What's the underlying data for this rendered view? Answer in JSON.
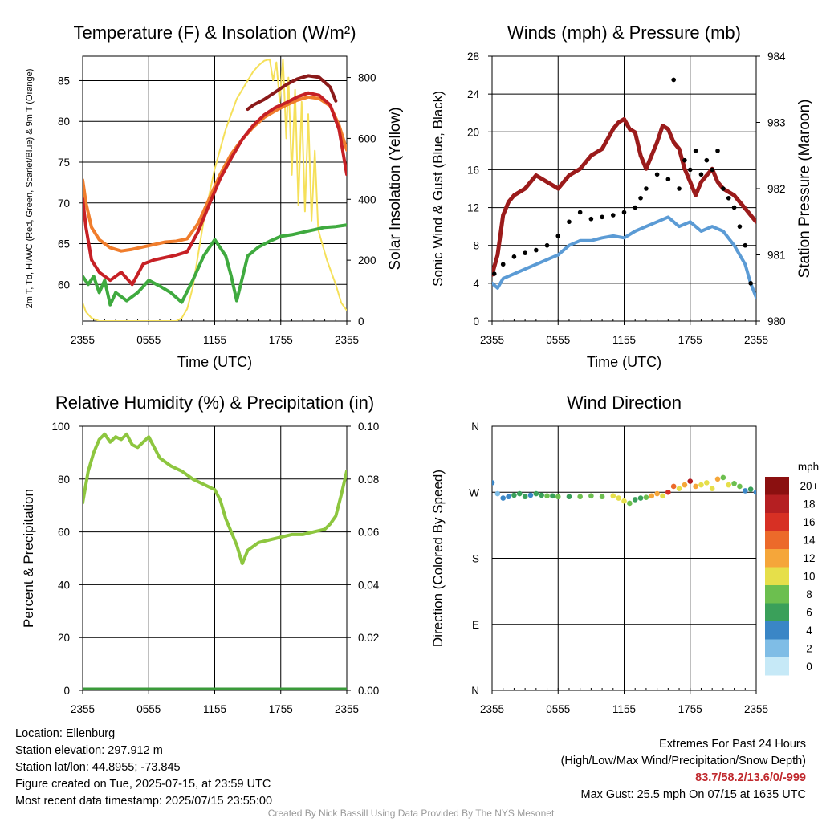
{
  "colors": {
    "temp": "#c62025",
    "dewpoint": "#3faa3f",
    "heat_index": "#8b1a1a",
    "t9m": "#f07d2c",
    "insolation": "#f5e05a",
    "wind": "#5b9bd5",
    "gust": "#000000",
    "pressure": "#9b1b1b",
    "rh": "#8dc63f",
    "precip": "#3a9a3a"
  },
  "chart_data": [
    {
      "id": "temperature",
      "type": "line",
      "title": "Temperature (F) & Insolation (W/m²)",
      "xlabel": "Time (UTC)",
      "ylabel": "2m T, Td, HI/WC (Red, Green, Scarlet/Blue) & 9m T (Orange)",
      "y2label": "Solar Insolation (Yellow)",
      "x_ticks": [
        "2355",
        "0555",
        "1155",
        "1755",
        "2355"
      ],
      "xlim_hours": [
        0,
        24
      ],
      "ylim": [
        55.5,
        88
      ],
      "yticks": [
        60,
        65,
        70,
        75,
        80,
        85
      ],
      "y2lim": [
        0,
        870
      ],
      "y2ticks": [
        0,
        200,
        400,
        600,
        800
      ],
      "series": [
        {
          "key": "t9m",
          "axis": "y",
          "x": [
            0,
            0.3,
            0.8,
            1.5,
            2.5,
            3.5,
            4.5,
            5.5,
            6.5,
            7.5,
            8.5,
            9.5,
            10.5,
            11.5,
            12.5,
            13.5,
            14.5,
            15.5,
            16.5,
            17.5,
            18.5,
            19.5,
            20.5,
            21.5,
            22.5,
            23.3,
            24
          ],
          "y": [
            72.8,
            70,
            67,
            65.5,
            64.5,
            64.1,
            64.3,
            64.6,
            64.9,
            65.2,
            65.3,
            65.6,
            67.5,
            70.5,
            73.5,
            76,
            77.8,
            79.3,
            80.5,
            81.3,
            82,
            82.6,
            83,
            82.8,
            81.9,
            79.5,
            76.5
          ]
        },
        {
          "key": "temp",
          "axis": "y",
          "x": [
            0,
            0.3,
            0.8,
            1.5,
            2.5,
            3.5,
            4.5,
            5.5,
            6.5,
            7.5,
            8.5,
            9.5,
            10.5,
            11.5,
            12.5,
            13.5,
            14.5,
            15.5,
            16.5,
            17.5,
            18.5,
            19.5,
            20.5,
            21.5,
            22.5,
            23.3,
            24
          ],
          "y": [
            70.5,
            67,
            63,
            61.5,
            60.5,
            61.5,
            60,
            62.5,
            63,
            63.3,
            63.6,
            64,
            66.5,
            69.8,
            73,
            75.5,
            77.8,
            79.5,
            80.8,
            81.7,
            82.3,
            83,
            83.5,
            83.2,
            82,
            79,
            73.5
          ]
        },
        {
          "key": "heat_index",
          "axis": "y",
          "x": [
            15,
            15.5,
            16.5,
            17.5,
            18.5,
            19.5,
            20.5,
            21.5,
            22.5,
            23
          ],
          "y": [
            81.5,
            82,
            82.7,
            83.6,
            84.5,
            85.2,
            85.6,
            85.4,
            84.2,
            82.5
          ]
        },
        {
          "key": "dewpoint",
          "axis": "y",
          "x": [
            0,
            0.5,
            1,
            1.5,
            2,
            2.5,
            3,
            3.5,
            4,
            5,
            6,
            7,
            8,
            9,
            10,
            11,
            12,
            13,
            13.5,
            14,
            15,
            16,
            17,
            18,
            19,
            20,
            21,
            22,
            23,
            24
          ],
          "y": [
            61,
            60,
            61,
            59,
            60.5,
            57.5,
            59,
            58.5,
            58,
            59,
            60.5,
            59.8,
            59,
            57.8,
            60.5,
            63.5,
            65.5,
            63.5,
            61,
            58,
            63.5,
            64.6,
            65.3,
            65.9,
            66.1,
            66.4,
            66.7,
            67,
            67.1,
            67.3
          ]
        },
        {
          "key": "insolation",
          "axis": "y2",
          "x": [
            0,
            0.3,
            0.8,
            1.5,
            3,
            5,
            7,
            8.5,
            9,
            9.5,
            10,
            10.5,
            11,
            12,
            13,
            14,
            15,
            15.5,
            16,
            16.5,
            17,
            17.3,
            17.6,
            17.9,
            18.2,
            18.5,
            18.7,
            19,
            19.3,
            19.6,
            19.9,
            20.2,
            20.5,
            20.8,
            21.1,
            21.4,
            21.8,
            22.2,
            22.6,
            23,
            23.5,
            24
          ],
          "y": [
            60,
            30,
            10,
            0,
            0,
            0,
            0,
            0,
            10,
            40,
            110,
            220,
            330,
            500,
            630,
            730,
            790,
            820,
            840,
            855,
            860,
            790,
            850,
            720,
            860,
            600,
            800,
            480,
            760,
            380,
            720,
            360,
            680,
            330,
            560,
            300,
            250,
            200,
            160,
            120,
            60,
            35
          ]
        }
      ]
    },
    {
      "id": "winds",
      "type": "line",
      "title": "Winds (mph) & Pressure (mb)",
      "xlabel": "Time (UTC)",
      "ylabel": "Sonic Wind & Gust (Blue, Black)",
      "y2label": "Station Pressure (Maroon)",
      "x_ticks": [
        "2355",
        "0555",
        "1155",
        "1755",
        "2355"
      ],
      "xlim_hours": [
        0,
        24
      ],
      "ylim": [
        0,
        28
      ],
      "yticks": [
        0,
        4,
        8,
        12,
        16,
        20,
        24,
        28
      ],
      "y2lim": [
        980,
        984
      ],
      "y2ticks": [
        980,
        981,
        982,
        983,
        984
      ],
      "series": [
        {
          "key": "wind",
          "axis": "y",
          "x": [
            0,
            0.5,
            1,
            2,
            3,
            4,
            5,
            6,
            7,
            8,
            9,
            10,
            11,
            12,
            13,
            14,
            15,
            16,
            17,
            18,
            19,
            20,
            21,
            22,
            23,
            23.5,
            24
          ],
          "y": [
            4,
            3.5,
            4.5,
            5,
            5.5,
            6,
            6.5,
            7,
            8,
            8.5,
            8.5,
            8.8,
            9,
            8.8,
            9.5,
            10,
            10.5,
            11,
            10,
            10.5,
            9.5,
            10,
            9.5,
            8,
            6,
            4,
            2.5
          ]
        },
        {
          "key": "gust",
          "axis": "y",
          "style": "dots",
          "x": [
            0.2,
            1,
            2,
            3,
            4,
            5,
            6,
            7,
            8,
            9,
            10,
            11,
            12,
            13,
            13.5,
            14,
            15,
            16,
            16.5,
            17,
            17.5,
            18,
            18.5,
            19,
            19.5,
            20,
            20.5,
            21,
            21.5,
            22,
            22.5,
            23,
            23.5
          ],
          "y": [
            5,
            6,
            6.8,
            7.2,
            7.5,
            8,
            9,
            10.5,
            11.5,
            10.8,
            11,
            11.2,
            11.5,
            12,
            13,
            14,
            15.5,
            15,
            25.5,
            14,
            17,
            16,
            18,
            15.5,
            17,
            16,
            18,
            14,
            13,
            12,
            10,
            8,
            4
          ]
        },
        {
          "key": "pressure",
          "axis": "y2",
          "x": [
            0,
            0.5,
            1,
            1.5,
            2,
            3,
            4,
            5,
            6,
            7,
            8,
            9,
            10,
            11,
            11.5,
            12,
            12.5,
            13,
            13.5,
            14,
            15,
            15.5,
            16,
            16.5,
            17,
            17.5,
            18,
            18.5,
            19,
            19.5,
            20,
            20.5,
            21,
            21.5,
            22,
            22.5,
            23,
            23.5,
            24
          ],
          "y": [
            980.7,
            981,
            981.6,
            981.8,
            981.9,
            982,
            982.2,
            982.1,
            982,
            982.2,
            982.3,
            982.5,
            982.6,
            982.9,
            983,
            983.05,
            982.9,
            982.85,
            982.5,
            982.3,
            982.7,
            982.95,
            982.9,
            982.7,
            982.6,
            982.3,
            982.1,
            981.9,
            982.1,
            982.2,
            982.3,
            982.1,
            982,
            981.95,
            981.9,
            981.8,
            981.7,
            981.6,
            981.5
          ]
        }
      ]
    },
    {
      "id": "humidity",
      "type": "line",
      "title": "Relative Humidity (%) & Precipitation (in)",
      "ylabel": "Percent & Precipitation",
      "x_ticks": [
        "2355",
        "0555",
        "1155",
        "1755",
        "2355"
      ],
      "xlim_hours": [
        0,
        24
      ],
      "ylim": [
        0,
        100
      ],
      "yticks": [
        0,
        20,
        40,
        60,
        80,
        100
      ],
      "y2lim": [
        0,
        0.1
      ],
      "y2ticks": [
        "0.00",
        "0.02",
        "0.04",
        "0.06",
        "0.08",
        "0.10"
      ],
      "series": [
        {
          "key": "rh",
          "axis": "y",
          "x": [
            0,
            0.5,
            1,
            1.5,
            2,
            2.5,
            3,
            3.5,
            4,
            4.5,
            5,
            5.5,
            6,
            7,
            8,
            9,
            10,
            11,
            12,
            12.5,
            13,
            13.5,
            14,
            14.5,
            15,
            16,
            17,
            18,
            19,
            20,
            21,
            22,
            22.5,
            23,
            23.5,
            24
          ],
          "y": [
            71,
            83,
            90,
            95,
            97,
            94,
            96,
            95,
            97,
            93,
            92,
            94,
            96,
            88,
            85,
            83,
            80,
            78,
            76,
            72,
            65,
            60,
            55,
            48,
            53,
            56,
            57,
            58,
            59,
            59,
            60,
            61,
            63,
            66,
            74,
            83
          ]
        },
        {
          "key": "precip",
          "axis": "y2",
          "x": [
            0,
            24
          ],
          "y": [
            0,
            0
          ]
        }
      ]
    },
    {
      "id": "direction",
      "type": "scatter",
      "title": "Wind Direction",
      "ylabel": "Direction (Colored By Speed)",
      "x_ticks": [
        "2355",
        "0555",
        "1155",
        "1755",
        "2355"
      ],
      "y_ticks": [
        "N",
        "E",
        "S",
        "W",
        "N"
      ],
      "xlim_hours": [
        0,
        24
      ],
      "ylim_deg": [
        0,
        360
      ],
      "colorbar": {
        "unit": "mph",
        "labels": [
          "0",
          "2",
          "4",
          "6",
          "8",
          "10",
          "12",
          "14",
          "16",
          "18",
          "20+"
        ],
        "colors": [
          "#c6e9f7",
          "#7fbde6",
          "#3a86c6",
          "#3aa05a",
          "#6cbf4f",
          "#e6df4a",
          "#f5a63a",
          "#ec6a2a",
          "#d73024",
          "#b51f22",
          "#8b1010"
        ]
      },
      "points": {
        "x": [
          0,
          0.5,
          1,
          1.5,
          2,
          2.5,
          3,
          3.5,
          4,
          4.5,
          5,
          5.5,
          6,
          7,
          8,
          9,
          10,
          11,
          11.5,
          12,
          12.5,
          13,
          13.5,
          14,
          14.5,
          15,
          15.5,
          16,
          16.5,
          17,
          17.5,
          18,
          18.5,
          19,
          19.5,
          20,
          20.5,
          21,
          21.5,
          22,
          22.5,
          23,
          23.5,
          24
        ],
        "dir": [
          283,
          268,
          262,
          264,
          266,
          268,
          264,
          266,
          268,
          266,
          265,
          265,
          264,
          264,
          264,
          265,
          264,
          265,
          262,
          258,
          255,
          260,
          262,
          263,
          265,
          268,
          265,
          270,
          278,
          275,
          280,
          285,
          278,
          280,
          283,
          275,
          288,
          290,
          280,
          282,
          278,
          272,
          274,
          270
        ],
        "speed": [
          3,
          2,
          4,
          3,
          6,
          5,
          6,
          4,
          5,
          6,
          7,
          6,
          7,
          6,
          7,
          8,
          8,
          9,
          10,
          9,
          7,
          6,
          6,
          7,
          11,
          12,
          9,
          15,
          14,
          10,
          12,
          17,
          11,
          9,
          10,
          9,
          12,
          8,
          10,
          8,
          7,
          4,
          5,
          3
        ]
      }
    }
  ],
  "info": {
    "location": "Location: Ellenburg",
    "elevation": "Station elevation: 297.912 m",
    "latlon": "Station lat/lon: 44.8955; -73.845",
    "created": "Figure created on Tue, 2025-07-15, at 23:59 UTC",
    "recent": "Most recent data timestamp: 2025/07/15 23:55:00"
  },
  "extremes": {
    "heading": "Extremes For Past 24 Hours",
    "legend": "(High/Low/Max Wind/Precipitation/Snow Depth)",
    "values": "83.7/58.2/13.6/0/-999",
    "max_gust": "Max Gust: 25.5 mph On 07/15 at 1635 UTC"
  },
  "credit": "Created By Nick Bassill Using Data Provided By The NYS Mesonet"
}
